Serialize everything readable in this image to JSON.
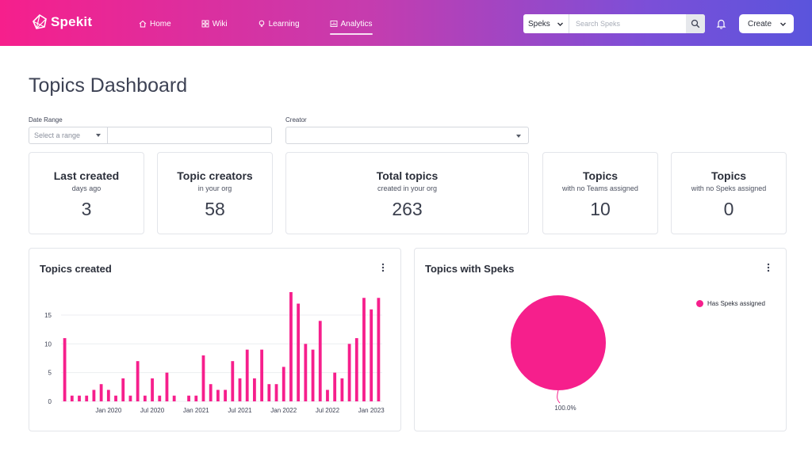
{
  "brand": {
    "name": "Spekit",
    "logo": "spekit-logo-icon"
  },
  "nav": [
    {
      "label": "Home",
      "icon": "home-icon"
    },
    {
      "label": "Wiki",
      "icon": "grid-icon"
    },
    {
      "label": "Learning",
      "icon": "lightbulb-icon"
    },
    {
      "label": "Analytics",
      "icon": "analytics-icon",
      "active": true
    }
  ],
  "search": {
    "scope": "Speks",
    "placeholder": "Search Speks"
  },
  "create_label": "Create",
  "page_title": "Topics Dashboard",
  "filters": {
    "date_range_label": "Date Range",
    "date_range_placeholder": "Select a range",
    "creator_label": "Creator",
    "creator_value": ""
  },
  "stats": [
    {
      "title": "Last created",
      "subtitle": "days ago",
      "value": "3"
    },
    {
      "title": "Topic creators",
      "subtitle": "in your org",
      "value": "58"
    },
    {
      "title": "Total topics",
      "subtitle": "created in your org",
      "value": "263"
    },
    {
      "title": "Topics",
      "subtitle": "with no Teams assigned",
      "value": "10"
    },
    {
      "title": "Topics",
      "subtitle": "with no Speks assigned",
      "value": "0"
    }
  ],
  "colors": {
    "accent": "#f61f8c",
    "gradient_start": "#f61f8c",
    "gradient_end": "#5a54dc"
  },
  "panels": {
    "topics_created_title": "Topics created",
    "topics_with_speks_title": "Topics with Speks"
  },
  "chart_data": [
    {
      "type": "bar",
      "title": "Topics created",
      "xlabel": "",
      "ylabel": "",
      "ylim": [
        0,
        19
      ],
      "yticks": [
        0,
        5,
        10,
        15
      ],
      "grid": true,
      "x_tick_labels": [
        "Jan 2020",
        "Jul 2020",
        "Jan 2021",
        "Jul 2021",
        "Jan 2022",
        "Jul 2022",
        "Jan 2023"
      ],
      "x_tick_positions": [
        6,
        12,
        18,
        24,
        30,
        36,
        42
      ],
      "values": [
        11,
        1,
        1,
        1,
        2,
        3,
        2,
        1,
        4,
        1,
        7,
        1,
        4,
        1,
        5,
        1,
        0,
        1,
        1,
        8,
        3,
        2,
        2,
        7,
        4,
        9,
        4,
        9,
        3,
        3,
        6,
        19,
        17,
        10,
        9,
        14,
        2,
        5,
        4,
        10,
        11,
        18,
        16,
        18
      ],
      "color": "#f61f8c"
    },
    {
      "type": "pie",
      "title": "Topics with Speks",
      "slices": [
        {
          "label": "Has Speks assigned",
          "value": 100.0,
          "color": "#f61f8c"
        }
      ],
      "data_labels": [
        "100.0%"
      ],
      "legend": "top-right"
    }
  ]
}
